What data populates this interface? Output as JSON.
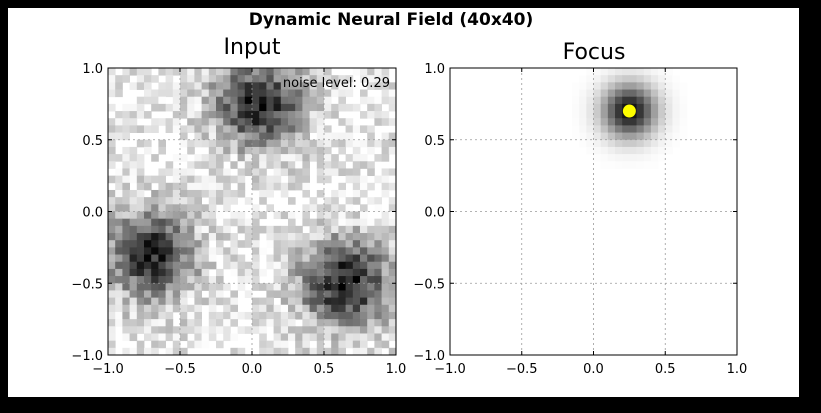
{
  "figure": {
    "title": "Dynamic Neural Field (40x40)",
    "colors": {
      "frame": "#000000",
      "background": "#000000",
      "plot_bg": "#ffffff",
      "grid": "#9a9a9a",
      "focus_marker": "#ffff00"
    }
  },
  "chart_data": [
    {
      "type": "heatmap",
      "title": "Input",
      "grid_size": [
        40,
        40
      ],
      "xlim": [
        -1.0,
        1.0
      ],
      "ylim": [
        -1.0,
        1.0
      ],
      "xticks": [
        -1.0,
        -0.5,
        0.0,
        0.5,
        1.0
      ],
      "yticks": [
        -1.0,
        -0.5,
        0.0,
        0.5,
        1.0
      ],
      "xtick_labels": [
        "−1.0",
        "−0.5",
        "0.0",
        "0.5",
        "1.0"
      ],
      "ytick_labels": [
        "−1.0",
        "−0.5",
        "0.0",
        "0.5",
        "1.0"
      ],
      "grid": true,
      "colormap": "gray_r",
      "annotation": "noise level: 0.29",
      "noise_level": 0.29,
      "blobs": [
        {
          "x": 0.05,
          "y": 0.75,
          "amplitude": 0.8,
          "width": 0.22
        },
        {
          "x": -0.7,
          "y": -0.3,
          "amplitude": 0.8,
          "width": 0.22
        },
        {
          "x": 0.65,
          "y": -0.5,
          "amplitude": 0.85,
          "width": 0.22
        }
      ]
    },
    {
      "type": "heatmap",
      "title": "Focus",
      "grid_size": [
        40,
        40
      ],
      "xlim": [
        -1.0,
        1.0
      ],
      "ylim": [
        -1.0,
        1.0
      ],
      "xticks": [
        -1.0,
        -0.5,
        0.0,
        0.5,
        1.0
      ],
      "yticks": [
        -1.0,
        -0.5,
        0.0,
        0.5,
        1.0
      ],
      "xtick_labels": [
        "−1.0",
        "−0.5",
        "0.0",
        "0.5",
        "1.0"
      ],
      "ytick_labels": [
        "−1.0",
        "−0.5",
        "0.0",
        "0.5",
        "1.0"
      ],
      "grid": true,
      "colormap": "gray_r",
      "blobs": [
        {
          "x": 0.25,
          "y": 0.7,
          "amplitude": 0.95,
          "width": 0.13
        }
      ],
      "marker": {
        "x": 0.25,
        "y": 0.7,
        "color": "#ffff00"
      }
    }
  ]
}
